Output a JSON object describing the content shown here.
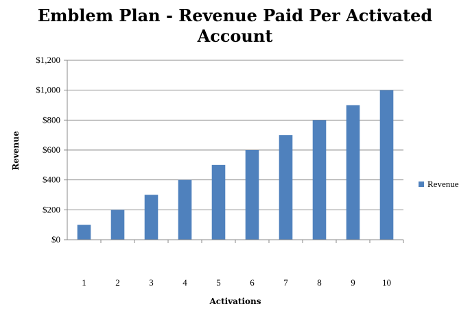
{
  "chart_data": {
    "type": "bar",
    "title_lines": [
      "Emblem Plan - Revenue Paid Per Activated",
      "Account"
    ],
    "xlabel": "Activations",
    "ylabel": "Revenue",
    "categories": [
      "1",
      "2",
      "3",
      "4",
      "5",
      "6",
      "7",
      "8",
      "9",
      "10"
    ],
    "series": [
      {
        "name": "Revenue",
        "values": [
          100,
          200,
          300,
          400,
          500,
          600,
          700,
          800,
          900,
          1000
        ],
        "color": "#4f81bd"
      }
    ],
    "ylim": [
      0,
      1200
    ],
    "yticks": [
      {
        "value": 0,
        "label": "$0"
      },
      {
        "value": 200,
        "label": "$200"
      },
      {
        "value": 400,
        "label": "$400"
      },
      {
        "value": 600,
        "label": "$600"
      },
      {
        "value": 800,
        "label": "$800"
      },
      {
        "value": 1000,
        "label": "$1,000"
      },
      {
        "value": 1200,
        "label": "$1,200"
      }
    ],
    "grid": true,
    "legend_position": "right"
  }
}
